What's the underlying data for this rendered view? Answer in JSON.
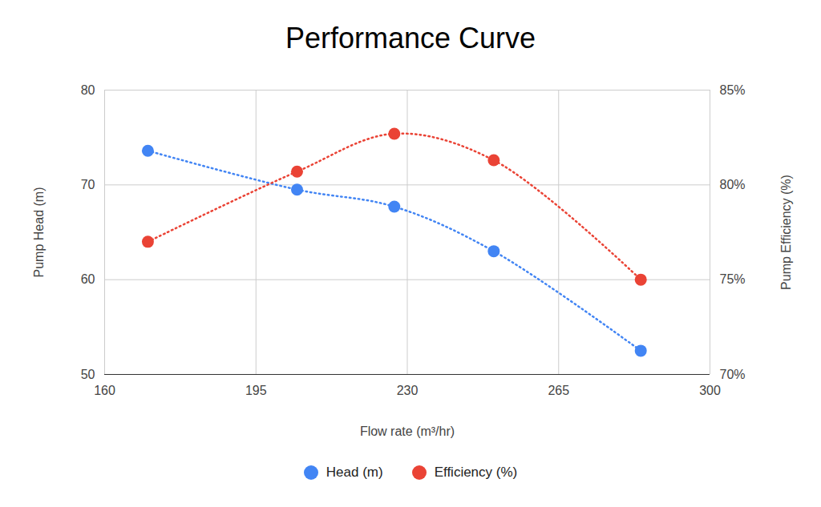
{
  "chart_data": {
    "type": "line",
    "title": "Performance Curve",
    "x_label": "Flow rate (m³/hr)",
    "y_label": "Pump Head (m)",
    "y2_label": "Pump Efficiency (%)",
    "x": [
      170,
      204.5,
      227,
      250,
      284
    ],
    "xlim": [
      160,
      300
    ],
    "xticks": [
      160,
      195,
      230,
      265,
      300
    ],
    "ylim": [
      50,
      80
    ],
    "yticks": [
      50,
      60,
      70,
      80
    ],
    "y2lim": [
      70,
      85
    ],
    "y2ticks": [
      {
        "value": 70,
        "label": "70%"
      },
      {
        "value": 75,
        "label": "75%"
      },
      {
        "value": 80,
        "label": "80%"
      },
      {
        "value": 85,
        "label": "85%"
      }
    ],
    "grid": true,
    "legend": "bottom",
    "series": [
      {
        "name": "Head (m)",
        "color": "#4285f4",
        "marker": "circle",
        "line_style": "dotted",
        "values": [
          73.6,
          69.5,
          67.7,
          63.0,
          52.5
        ]
      },
      {
        "name": "Efficiency (%)",
        "color": "#ea4335",
        "marker": "circle",
        "line_style": "dotted",
        "axis": "y2",
        "values": [
          77.0,
          80.7,
          82.7,
          81.3,
          75.0
        ]
      }
    ]
  }
}
